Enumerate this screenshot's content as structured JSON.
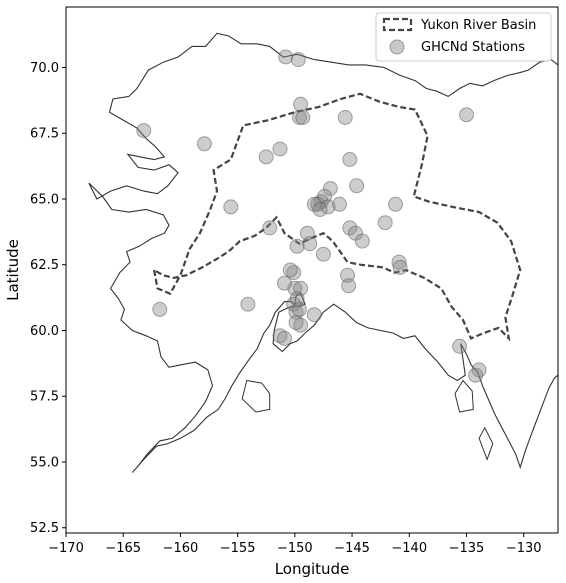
{
  "chart_data": {
    "type": "scatter",
    "xlabel": "Longitude",
    "ylabel": "Latitude",
    "xlim": [
      -170,
      -127
    ],
    "ylim": [
      52.3,
      72.3
    ],
    "xticks": [
      -170,
      -165,
      -160,
      -155,
      -150,
      -145,
      -140,
      -135,
      -130
    ],
    "xtick_labels": [
      "−170",
      "−165",
      "−160",
      "−155",
      "−150",
      "−145",
      "−140",
      "−135",
      "−130"
    ],
    "yticks": [
      52.5,
      55.0,
      57.5,
      60.0,
      62.5,
      65.0,
      67.5,
      70.0
    ],
    "ytick_labels": [
      "52.5",
      "55.0",
      "57.5",
      "60.0",
      "62.5",
      "65.0",
      "67.5",
      "70.0"
    ],
    "grid": false,
    "legend_position": "top-right",
    "series": [
      {
        "name": "Yukon River Basin",
        "kind": "outline",
        "style": "dashed",
        "color": "#444444",
        "points": [
          [
            -162.3,
            62.3
          ],
          [
            -162.0,
            61.6
          ],
          [
            -160.9,
            61.4
          ],
          [
            -160.0,
            62.1
          ],
          [
            -159.2,
            63.1
          ],
          [
            -158.3,
            63.7
          ],
          [
            -157.4,
            64.6
          ],
          [
            -156.8,
            65.3
          ],
          [
            -157.1,
            66.1
          ],
          [
            -155.6,
            66.5
          ],
          [
            -154.5,
            67.8
          ],
          [
            -152.3,
            68.0
          ],
          [
            -150.0,
            68.3
          ],
          [
            -147.9,
            68.5
          ],
          [
            -146.0,
            68.8
          ],
          [
            -144.3,
            69.0
          ],
          [
            -142.6,
            68.7
          ],
          [
            -140.9,
            68.5
          ],
          [
            -139.5,
            68.4
          ],
          [
            -138.4,
            67.4
          ],
          [
            -138.9,
            66.3
          ],
          [
            -139.6,
            65.1
          ],
          [
            -138.3,
            64.9
          ],
          [
            -136.2,
            64.7
          ],
          [
            -133.9,
            64.5
          ],
          [
            -132.3,
            64.1
          ],
          [
            -131.1,
            63.4
          ],
          [
            -130.3,
            62.3
          ],
          [
            -131.0,
            61.3
          ],
          [
            -131.6,
            60.5
          ],
          [
            -131.3,
            59.7
          ],
          [
            -132.2,
            60.1
          ],
          [
            -133.5,
            59.9
          ],
          [
            -134.6,
            59.7
          ],
          [
            -135.3,
            60.4
          ],
          [
            -136.3,
            60.9
          ],
          [
            -137.2,
            61.6
          ],
          [
            -138.7,
            62.0
          ],
          [
            -140.3,
            62.3
          ],
          [
            -141.3,
            62.2
          ],
          [
            -142.3,
            62.4
          ],
          [
            -144.3,
            62.5
          ],
          [
            -145.4,
            62.6
          ],
          [
            -146.2,
            63.1
          ],
          [
            -146.7,
            63.4
          ],
          [
            -147.5,
            63.7
          ],
          [
            -148.6,
            63.5
          ],
          [
            -149.6,
            63.3
          ],
          [
            -150.9,
            63.7
          ],
          [
            -151.6,
            64.3
          ],
          [
            -152.5,
            63.9
          ],
          [
            -153.5,
            63.6
          ],
          [
            -154.8,
            63.4
          ],
          [
            -155.8,
            63.0
          ],
          [
            -156.9,
            62.7
          ],
          [
            -158.1,
            62.4
          ],
          [
            -159.5,
            62.1
          ],
          [
            -160.6,
            62.0
          ],
          [
            -161.5,
            62.1
          ],
          [
            -162.3,
            62.3
          ]
        ]
      },
      {
        "name": "GHCNd Stations",
        "kind": "scatter",
        "color": "#888888",
        "points": [
          [
            -150.8,
            70.4
          ],
          [
            -149.7,
            70.3
          ],
          [
            -163.2,
            67.6
          ],
          [
            -157.9,
            67.1
          ],
          [
            -149.5,
            68.6
          ],
          [
            -149.6,
            68.1
          ],
          [
            -149.3,
            68.1
          ],
          [
            -145.6,
            68.1
          ],
          [
            -135.0,
            68.2
          ],
          [
            -152.5,
            66.6
          ],
          [
            -151.3,
            66.9
          ],
          [
            -145.2,
            66.5
          ],
          [
            -155.6,
            64.7
          ],
          [
            -152.2,
            63.9
          ],
          [
            -148.9,
            63.7
          ],
          [
            -148.7,
            63.3
          ],
          [
            -149.8,
            63.2
          ],
          [
            -147.5,
            62.9
          ],
          [
            -145.4,
            62.1
          ],
          [
            -145.2,
            63.9
          ],
          [
            -144.7,
            63.7
          ],
          [
            -144.1,
            63.4
          ],
          [
            -142.1,
            64.1
          ],
          [
            -141.2,
            64.8
          ],
          [
            -144.6,
            65.5
          ],
          [
            -146.9,
            65.4
          ],
          [
            -146.1,
            64.8
          ],
          [
            -147.4,
            65.1
          ],
          [
            -147.7,
            64.9
          ],
          [
            -148.0,
            64.8
          ],
          [
            -147.1,
            64.7
          ],
          [
            -148.3,
            64.8
          ],
          [
            -147.8,
            64.6
          ],
          [
            -140.9,
            62.6
          ],
          [
            -140.8,
            62.4
          ],
          [
            -145.3,
            61.7
          ],
          [
            -150.1,
            62.2
          ],
          [
            -150.4,
            62.3
          ],
          [
            -150.0,
            61.6
          ],
          [
            -149.5,
            61.6
          ],
          [
            -149.8,
            61.2
          ],
          [
            -150.1,
            61.0
          ],
          [
            -149.9,
            60.7
          ],
          [
            -149.6,
            60.8
          ],
          [
            -148.3,
            60.6
          ],
          [
            -149.5,
            60.2
          ],
          [
            -149.9,
            60.3
          ],
          [
            -150.9,
            61.8
          ],
          [
            -151.3,
            59.8
          ],
          [
            -150.9,
            59.7
          ],
          [
            -154.1,
            61.0
          ],
          [
            -161.8,
            60.8
          ],
          [
            -135.6,
            59.4
          ],
          [
            -133.9,
            58.5
          ],
          [
            -134.2,
            58.3
          ]
        ]
      }
    ],
    "basemap": {
      "name": "Alaska coastline",
      "color": "#333333",
      "mainland": [
        [
          -127.0,
          70.1
        ],
        [
          -127.6,
          70.3
        ],
        [
          -128.6,
          70.2
        ],
        [
          -129.6,
          69.9
        ],
        [
          -130.4,
          69.8
        ],
        [
          -131.4,
          69.7
        ],
        [
          -132.6,
          69.5
        ],
        [
          -133.6,
          69.3
        ],
        [
          -134.7,
          69.4
        ],
        [
          -135.6,
          69.2
        ],
        [
          -136.6,
          68.9
        ],
        [
          -137.6,
          69.1
        ],
        [
          -138.5,
          69.2
        ],
        [
          -139.5,
          69.5
        ],
        [
          -140.8,
          69.7
        ],
        [
          -142.2,
          70.0
        ],
        [
          -143.8,
          70.1
        ],
        [
          -145.3,
          70.1
        ],
        [
          -146.8,
          70.2
        ],
        [
          -148.3,
          70.3
        ],
        [
          -149.8,
          70.5
        ],
        [
          -151.0,
          70.4
        ],
        [
          -152.2,
          70.8
        ],
        [
          -153.3,
          70.9
        ],
        [
          -154.7,
          70.9
        ],
        [
          -155.8,
          71.2
        ],
        [
          -156.8,
          71.3
        ],
        [
          -157.8,
          70.8
        ],
        [
          -159.0,
          70.8
        ],
        [
          -160.2,
          70.4
        ],
        [
          -161.5,
          70.2
        ],
        [
          -162.8,
          69.9
        ],
        [
          -163.8,
          69.2
        ],
        [
          -164.5,
          68.9
        ],
        [
          -165.9,
          68.8
        ],
        [
          -166.2,
          68.3
        ],
        [
          -165.0,
          68.0
        ],
        [
          -163.8,
          67.7
        ],
        [
          -163.0,
          67.3
        ],
        [
          -162.2,
          67.0
        ],
        [
          -161.4,
          66.6
        ],
        [
          -162.3,
          66.5
        ],
        [
          -163.5,
          66.6
        ],
        [
          -164.6,
          66.7
        ],
        [
          -163.7,
          66.2
        ],
        [
          -162.3,
          66.1
        ],
        [
          -161.0,
          66.3
        ],
        [
          -160.2,
          66.0
        ],
        [
          -161.1,
          65.5
        ],
        [
          -162.0,
          65.2
        ],
        [
          -163.2,
          65.3
        ],
        [
          -164.7,
          65.5
        ],
        [
          -166.1,
          65.3
        ],
        [
          -167.3,
          65.0
        ],
        [
          -168.0,
          65.6
        ],
        [
          -166.8,
          65.1
        ],
        [
          -166.0,
          64.6
        ],
        [
          -164.5,
          64.5
        ],
        [
          -163.0,
          64.6
        ],
        [
          -161.5,
          64.4
        ],
        [
          -161.0,
          64.0
        ],
        [
          -161.4,
          63.7
        ],
        [
          -162.5,
          63.5
        ],
        [
          -163.6,
          63.2
        ],
        [
          -164.7,
          63.0
        ],
        [
          -164.4,
          62.6
        ],
        [
          -165.3,
          62.2
        ],
        [
          -166.1,
          61.6
        ],
        [
          -165.4,
          61.2
        ],
        [
          -164.9,
          60.8
        ],
        [
          -165.2,
          60.4
        ],
        [
          -164.2,
          60.0
        ],
        [
          -163.0,
          59.8
        ],
        [
          -162.0,
          59.6
        ],
        [
          -161.7,
          59.0
        ],
        [
          -161.0,
          58.6
        ],
        [
          -159.9,
          58.7
        ],
        [
          -158.7,
          58.8
        ],
        [
          -157.6,
          58.5
        ],
        [
          -157.2,
          57.9
        ],
        [
          -157.8,
          57.3
        ],
        [
          -158.6,
          56.8
        ],
        [
          -159.6,
          56.3
        ],
        [
          -160.7,
          55.9
        ],
        [
          -161.8,
          55.8
        ],
        [
          -162.9,
          55.3
        ],
        [
          -163.6,
          54.9
        ],
        [
          -164.2,
          54.6
        ],
        [
          -163.2,
          55.1
        ],
        [
          -162.1,
          55.6
        ],
        [
          -161.1,
          55.7
        ],
        [
          -160.0,
          55.9
        ],
        [
          -158.8,
          56.2
        ],
        [
          -157.7,
          56.7
        ],
        [
          -156.7,
          57.0
        ],
        [
          -156.1,
          57.4
        ],
        [
          -155.5,
          57.9
        ],
        [
          -154.8,
          58.4
        ],
        [
          -154.0,
          58.9
        ],
        [
          -153.3,
          59.3
        ],
        [
          -152.7,
          59.9
        ],
        [
          -152.2,
          60.2
        ],
        [
          -151.7,
          60.7
        ],
        [
          -150.9,
          61.1
        ],
        [
          -150.3,
          61.1
        ],
        [
          -150.0,
          61.0
        ],
        [
          -149.9,
          61.3
        ],
        [
          -149.5,
          61.4
        ],
        [
          -149.1,
          61.0
        ],
        [
          -149.7,
          60.9
        ],
        [
          -150.4,
          60.9
        ],
        [
          -151.4,
          60.7
        ],
        [
          -151.8,
          60.0
        ],
        [
          -151.9,
          59.5
        ],
        [
          -151.1,
          59.2
        ],
        [
          -150.4,
          59.5
        ],
        [
          -149.8,
          59.6
        ],
        [
          -149.1,
          59.9
        ],
        [
          -148.3,
          60.2
        ],
        [
          -147.5,
          60.7
        ],
        [
          -146.6,
          61.0
        ],
        [
          -145.6,
          60.7
        ],
        [
          -144.6,
          60.3
        ],
        [
          -143.6,
          60.1
        ],
        [
          -142.5,
          60.0
        ],
        [
          -141.4,
          59.9
        ],
        [
          -140.5,
          59.7
        ],
        [
          -139.5,
          59.8
        ],
        [
          -138.6,
          59.3
        ],
        [
          -137.5,
          58.8
        ],
        [
          -136.6,
          58.3
        ],
        [
          -135.8,
          58.1
        ],
        [
          -135.1,
          58.3
        ],
        [
          -135.3,
          58.9
        ],
        [
          -135.5,
          59.5
        ],
        [
          -135.0,
          59.1
        ],
        [
          -134.6,
          58.7
        ],
        [
          -134.0,
          58.4
        ],
        [
          -133.6,
          57.9
        ],
        [
          -133.0,
          57.3
        ],
        [
          -132.5,
          56.8
        ],
        [
          -131.9,
          56.3
        ],
        [
          -131.3,
          55.8
        ],
        [
          -130.7,
          55.3
        ],
        [
          -130.3,
          54.8
        ],
        [
          -129.8,
          55.5
        ],
        [
          -129.2,
          56.2
        ],
        [
          -128.5,
          57.0
        ],
        [
          -127.8,
          57.8
        ],
        [
          -127.3,
          58.2
        ],
        [
          -127.0,
          58.3
        ]
      ],
      "islands": [
        [
          [
            -152.2,
            57.0
          ],
          [
            -153.4,
            56.9
          ],
          [
            -154.6,
            57.4
          ],
          [
            -154.2,
            58.1
          ],
          [
            -152.9,
            58.0
          ],
          [
            -152.2,
            57.6
          ],
          [
            -152.2,
            57.0
          ]
        ],
        [
          [
            -134.4,
            57.0
          ],
          [
            -135.6,
            56.9
          ],
          [
            -136.0,
            57.6
          ],
          [
            -135.3,
            58.1
          ],
          [
            -134.5,
            57.7
          ],
          [
            -134.4,
            57.0
          ]
        ],
        [
          [
            -133.2,
            55.1
          ],
          [
            -133.9,
            55.9
          ],
          [
            -133.4,
            56.3
          ],
          [
            -132.7,
            55.7
          ],
          [
            -133.2,
            55.1
          ]
        ]
      ]
    }
  },
  "legend": {
    "entries": [
      "Yukon River Basin",
      "GHCNd Stations"
    ]
  }
}
